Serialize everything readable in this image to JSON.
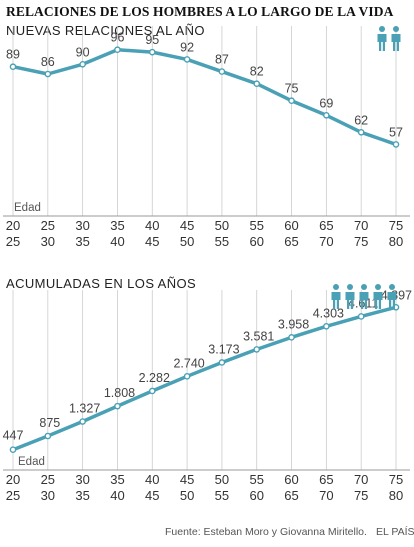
{
  "header": {
    "title": "RELACIONES DE LOS HOMBRES A LO LARGO DE LA VIDA",
    "source": "Fuente: Esteban Moro y Giovanna Miritello.",
    "brand": "EL PAÍS"
  },
  "colors": {
    "line": "#4aa0b5",
    "icon": "#4aa0b5",
    "axis": "#cccccc"
  },
  "chart_data": [
    {
      "type": "line",
      "title": "NUEVAS RELACIONES AL AÑO",
      "xlabel": "Edad",
      "categories": [
        "20-25",
        "25-30",
        "30-35",
        "35-40",
        "40-45",
        "45-50",
        "50-55",
        "55-60",
        "60-65",
        "65-70",
        "70-75",
        "75-80"
      ],
      "tick_top": [
        "20",
        "25",
        "30",
        "35",
        "40",
        "45",
        "50",
        "55",
        "60",
        "65",
        "70",
        "75"
      ],
      "tick_bottom": [
        "25",
        "30",
        "35",
        "40",
        "45",
        "50",
        "55",
        "60",
        "65",
        "70",
        "75",
        "80"
      ],
      "values": [
        89,
        86,
        90,
        96,
        95,
        92,
        87,
        82,
        75,
        69,
        62,
        57
      ],
      "value_labels": [
        "89",
        "86",
        "90",
        "96",
        "95",
        "92",
        "87",
        "82",
        "75",
        "69",
        "62",
        "57"
      ],
      "ylim": [
        30,
        100
      ],
      "icon_count": 2
    },
    {
      "type": "line",
      "title": "ACUMULADAS EN LOS AÑOS",
      "xlabel": "Edad",
      "categories": [
        "20-25",
        "25-30",
        "30-35",
        "35-40",
        "40-45",
        "45-50",
        "50-55",
        "55-60",
        "60-65",
        "65-70",
        "70-75",
        "75-80"
      ],
      "tick_top": [
        "20",
        "25",
        "30",
        "35",
        "40",
        "45",
        "50",
        "55",
        "60",
        "65",
        "70",
        "75"
      ],
      "tick_bottom": [
        "25",
        "30",
        "35",
        "40",
        "45",
        "50",
        "55",
        "60",
        "65",
        "70",
        "75",
        "80"
      ],
      "values": [
        447,
        875,
        1327,
        1808,
        2282,
        2740,
        3173,
        3581,
        3958,
        4303,
        4611,
        4897
      ],
      "value_labels": [
        "447",
        "875",
        "1.327",
        "1.808",
        "2.282",
        "2.740",
        "3.173",
        "3.581",
        "3.958",
        "4.303",
        "4.611",
        "4.897"
      ],
      "ylim": [
        0,
        5000
      ],
      "icon_count": 5
    }
  ]
}
